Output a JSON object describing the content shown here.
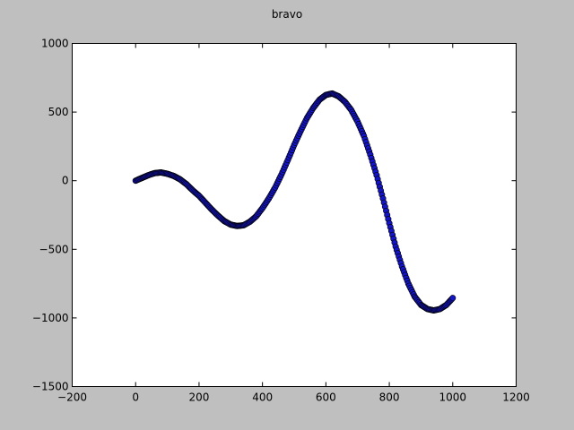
{
  "chart_data": {
    "type": "scatter",
    "title": "bravo",
    "xlabel": "",
    "ylabel": "",
    "xlim": [
      -200,
      1200
    ],
    "ylim": [
      -1500,
      1000
    ],
    "x_ticks": [
      -200,
      0,
      200,
      400,
      600,
      800,
      1000,
      1200
    ],
    "y_ticks": [
      -1500,
      -1000,
      -500,
      0,
      500,
      1000
    ],
    "x_tick_labels": [
      "−200",
      "0",
      "200",
      "400",
      "600",
      "800",
      "1000",
      "1200"
    ],
    "y_tick_labels": [
      "−1500",
      "−1000",
      "−500",
      "0",
      "500",
      "1000"
    ],
    "grid": false,
    "legend": "none",
    "marker_color": "#1515c8",
    "background_color": "#bfbfbf",
    "series": [
      {
        "x": [
          0,
          20,
          40,
          60,
          80,
          100,
          120,
          140,
          160,
          180,
          200,
          220,
          240,
          260,
          280,
          300,
          320,
          340,
          360,
          380,
          400,
          420,
          440,
          460,
          480,
          500,
          520,
          540,
          560,
          580,
          600,
          620,
          640,
          660,
          680,
          700,
          720,
          740,
          760,
          780,
          800,
          820,
          840,
          860,
          880,
          900,
          920,
          940,
          960,
          980,
          1000
        ],
        "y": [
          0,
          20,
          40,
          55,
          60,
          50,
          35,
          10,
          -25,
          -70,
          -110,
          -160,
          -210,
          -255,
          -295,
          -320,
          -330,
          -325,
          -300,
          -260,
          -200,
          -130,
          -50,
          45,
          150,
          260,
          360,
          455,
          530,
          590,
          625,
          635,
          615,
          575,
          515,
          430,
          325,
          190,
          40,
          -130,
          -310,
          -480,
          -625,
          -750,
          -845,
          -905,
          -935,
          -945,
          -935,
          -905,
          -855
        ]
      }
    ]
  }
}
